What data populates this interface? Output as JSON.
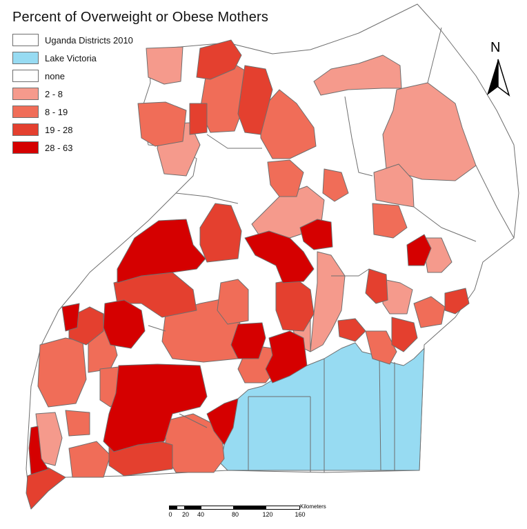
{
  "title": "Percent of Overweight or Obese Mothers",
  "colors": {
    "background": "#ffffff",
    "border": "#6e6e6e",
    "lake": "#97dbf2",
    "none": "#ffffff",
    "c1": "#f59a8c",
    "c2": "#f06d58",
    "c3": "#e4402f",
    "c4": "#d50000"
  },
  "legend": {
    "items": [
      {
        "label": "Uganda Districts 2010",
        "color": "#ffffff"
      },
      {
        "label": "Lake Victoria",
        "color": "#97dbf2"
      },
      {
        "label": "none",
        "color": "#ffffff"
      },
      {
        "label": "2 - 8",
        "color": "#f59a8c"
      },
      {
        "label": "8 - 19",
        "color": "#f06d58"
      },
      {
        "label": "19 - 28",
        "color": "#e4402f"
      },
      {
        "label": "28 - 63",
        "color": "#d50000"
      }
    ]
  },
  "north_arrow": {
    "label": "N",
    "icon": "north-arrow-icon"
  },
  "scale_bar": {
    "unit": "Kilometers",
    "ticks": [
      "0",
      "20",
      "40",
      "80",
      "120",
      "160"
    ]
  }
}
